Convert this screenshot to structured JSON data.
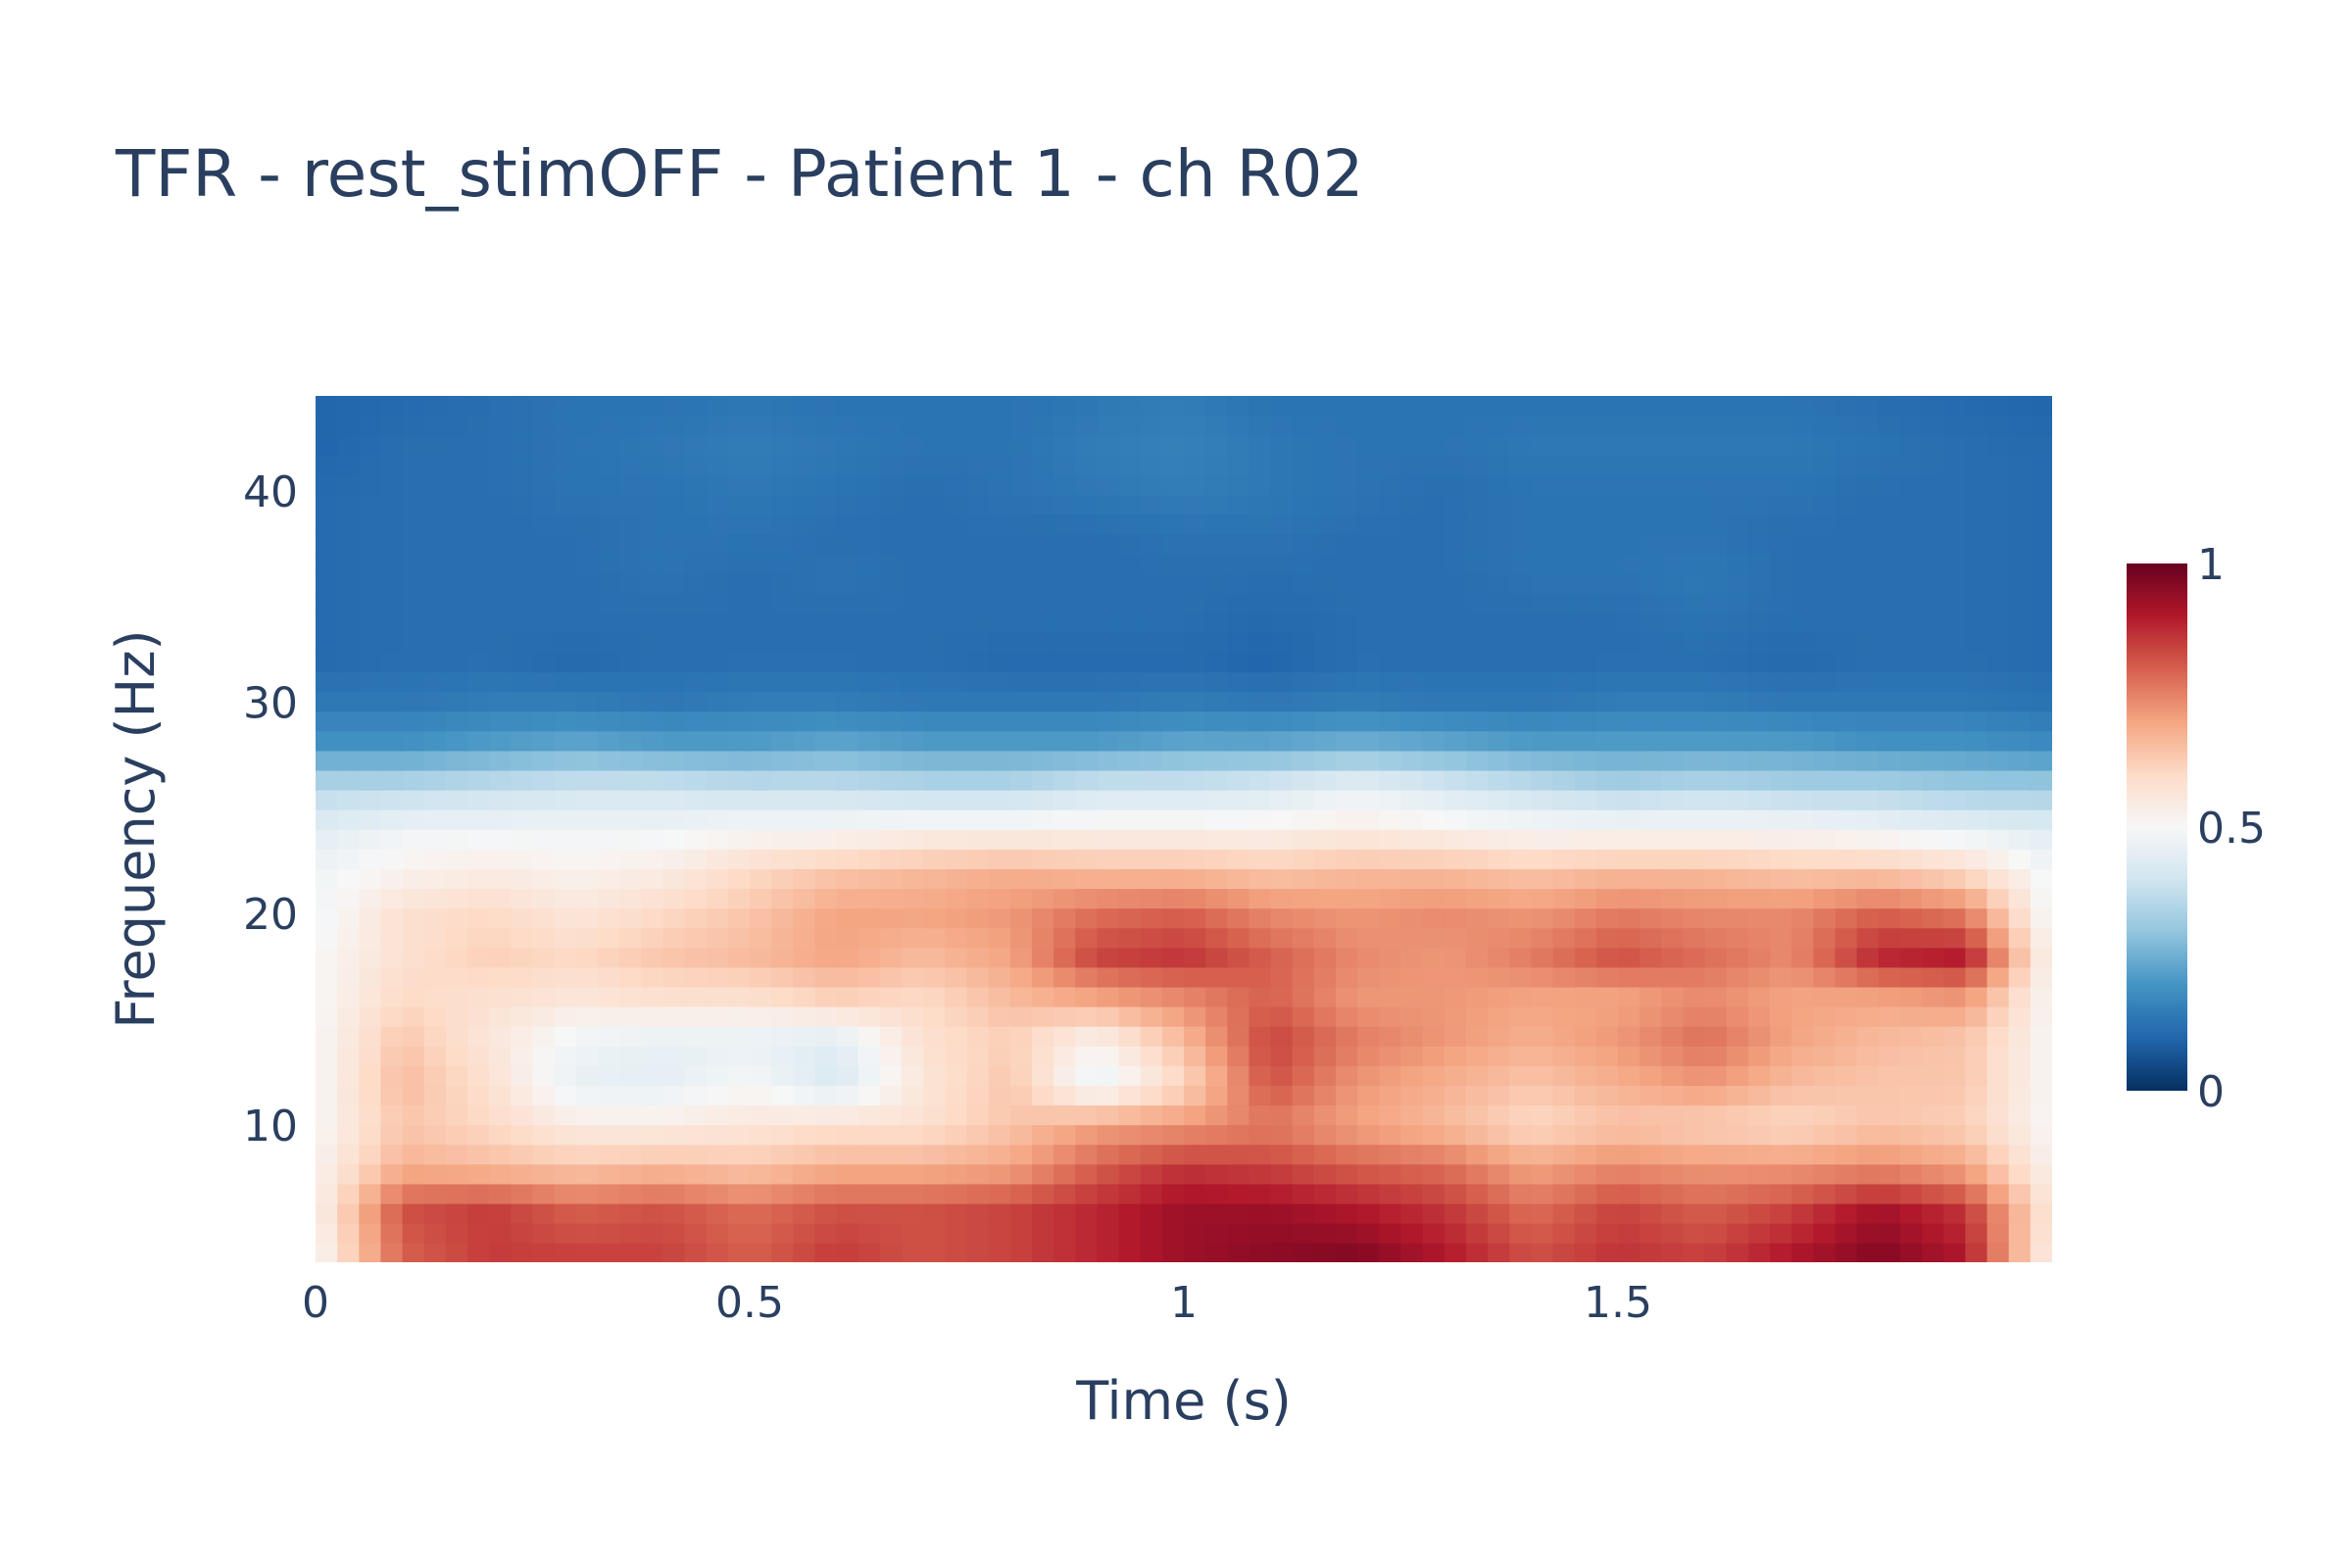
{
  "chart_data": {
    "type": "heatmap",
    "title": "TFR - rest_stimOFF - Patient 1 - ch R02",
    "xlabel": "Time (s)",
    "ylabel": "Frequency (Hz)",
    "xlim": [
      0,
      2
    ],
    "ylim": [
      3.5,
      44.5
    ],
    "x_ticks": [
      0,
      0.5,
      1,
      1.5
    ],
    "x_tick_labels": [
      "0",
      "0.5",
      "1",
      "1.5"
    ],
    "y_ticks": [
      10,
      20,
      30,
      40
    ],
    "y_tick_labels": [
      "10",
      "20",
      "30",
      "40"
    ],
    "colorscale": "RdBu_r",
    "colorscale_stops": [
      "#053061",
      "#2166ac",
      "#4393c3",
      "#92c5de",
      "#d1e5f0",
      "#f7f7f7",
      "#fddbc7",
      "#f4a582",
      "#d6604d",
      "#b2182b",
      "#67001f"
    ],
    "colorbar": {
      "range": [
        0,
        1
      ],
      "ticks": [
        0,
        0.5,
        1
      ],
      "tick_labels": [
        "0",
        "0.5",
        "1"
      ]
    },
    "x": [
      0.0,
      0.1,
      0.2,
      0.3,
      0.4,
      0.5,
      0.6,
      0.7,
      0.8,
      0.9,
      1.0,
      1.1,
      1.2,
      1.3,
      1.4,
      1.5,
      1.6,
      1.7,
      1.8,
      1.9,
      2.0
    ],
    "y": [
      4,
      6,
      8,
      10,
      12,
      14,
      16,
      18,
      20,
      22,
      24,
      26,
      28,
      30,
      32,
      34,
      36,
      38,
      40,
      42,
      44
    ],
    "z": [
      [
        0.5,
        0.8,
        0.85,
        0.84,
        0.84,
        0.8,
        0.85,
        0.82,
        0.84,
        0.88,
        0.93,
        0.95,
        0.96,
        0.9,
        0.82,
        0.86,
        0.84,
        0.9,
        0.96,
        0.9,
        0.52
      ],
      [
        0.52,
        0.82,
        0.85,
        0.8,
        0.82,
        0.78,
        0.82,
        0.82,
        0.84,
        0.88,
        0.93,
        0.93,
        0.9,
        0.86,
        0.78,
        0.84,
        0.8,
        0.84,
        0.92,
        0.86,
        0.55
      ],
      [
        0.52,
        0.68,
        0.66,
        0.64,
        0.66,
        0.64,
        0.68,
        0.68,
        0.7,
        0.8,
        0.86,
        0.84,
        0.8,
        0.78,
        0.7,
        0.74,
        0.72,
        0.72,
        0.74,
        0.7,
        0.52
      ],
      [
        0.5,
        0.64,
        0.6,
        0.54,
        0.54,
        0.56,
        0.58,
        0.58,
        0.64,
        0.7,
        0.72,
        0.76,
        0.7,
        0.66,
        0.6,
        0.64,
        0.62,
        0.6,
        0.64,
        0.62,
        0.5
      ],
      [
        0.5,
        0.66,
        0.58,
        0.46,
        0.45,
        0.5,
        0.42,
        0.56,
        0.64,
        0.46,
        0.6,
        0.82,
        0.72,
        0.68,
        0.64,
        0.68,
        0.72,
        0.66,
        0.64,
        0.64,
        0.5
      ],
      [
        0.5,
        0.64,
        0.56,
        0.48,
        0.46,
        0.46,
        0.44,
        0.58,
        0.62,
        0.52,
        0.66,
        0.84,
        0.76,
        0.72,
        0.68,
        0.72,
        0.78,
        0.7,
        0.66,
        0.64,
        0.5
      ],
      [
        0.5,
        0.6,
        0.58,
        0.56,
        0.58,
        0.58,
        0.62,
        0.6,
        0.66,
        0.7,
        0.74,
        0.8,
        0.72,
        0.72,
        0.7,
        0.7,
        0.74,
        0.7,
        0.7,
        0.72,
        0.5
      ],
      [
        0.5,
        0.58,
        0.62,
        0.6,
        0.64,
        0.66,
        0.7,
        0.66,
        0.7,
        0.84,
        0.86,
        0.8,
        0.74,
        0.72,
        0.76,
        0.82,
        0.78,
        0.74,
        0.88,
        0.9,
        0.5
      ],
      [
        0.48,
        0.58,
        0.6,
        0.56,
        0.6,
        0.64,
        0.7,
        0.7,
        0.72,
        0.78,
        0.8,
        0.74,
        0.72,
        0.74,
        0.72,
        0.76,
        0.74,
        0.74,
        0.8,
        0.76,
        0.48
      ],
      [
        0.48,
        0.52,
        0.54,
        0.52,
        0.54,
        0.6,
        0.64,
        0.66,
        0.68,
        0.66,
        0.66,
        0.64,
        0.66,
        0.66,
        0.64,
        0.66,
        0.66,
        0.64,
        0.64,
        0.6,
        0.48
      ],
      [
        0.44,
        0.48,
        0.48,
        0.48,
        0.48,
        0.5,
        0.5,
        0.52,
        0.52,
        0.52,
        0.52,
        0.52,
        0.54,
        0.52,
        0.5,
        0.5,
        0.5,
        0.5,
        0.48,
        0.46,
        0.44
      ],
      [
        0.36,
        0.36,
        0.38,
        0.4,
        0.4,
        0.38,
        0.38,
        0.36,
        0.36,
        0.4,
        0.4,
        0.42,
        0.46,
        0.42,
        0.38,
        0.34,
        0.36,
        0.34,
        0.34,
        0.32,
        0.32
      ],
      [
        0.2,
        0.2,
        0.22,
        0.24,
        0.22,
        0.22,
        0.24,
        0.22,
        0.22,
        0.22,
        0.24,
        0.24,
        0.26,
        0.24,
        0.22,
        0.22,
        0.22,
        0.22,
        0.2,
        0.2,
        0.18
      ],
      [
        0.14,
        0.14,
        0.15,
        0.15,
        0.14,
        0.15,
        0.15,
        0.14,
        0.14,
        0.14,
        0.15,
        0.14,
        0.15,
        0.14,
        0.14,
        0.15,
        0.15,
        0.14,
        0.14,
        0.14,
        0.13
      ],
      [
        0.11,
        0.12,
        0.12,
        0.11,
        0.12,
        0.12,
        0.12,
        0.12,
        0.11,
        0.11,
        0.11,
        0.1,
        0.12,
        0.12,
        0.12,
        0.12,
        0.12,
        0.11,
        0.12,
        0.12,
        0.11
      ],
      [
        0.11,
        0.12,
        0.12,
        0.12,
        0.12,
        0.12,
        0.12,
        0.12,
        0.12,
        0.12,
        0.12,
        0.11,
        0.12,
        0.12,
        0.12,
        0.12,
        0.13,
        0.12,
        0.12,
        0.12,
        0.11
      ],
      [
        0.11,
        0.12,
        0.12,
        0.12,
        0.13,
        0.12,
        0.13,
        0.12,
        0.12,
        0.12,
        0.12,
        0.12,
        0.12,
        0.12,
        0.13,
        0.13,
        0.14,
        0.12,
        0.12,
        0.12,
        0.11
      ],
      [
        0.11,
        0.12,
        0.12,
        0.12,
        0.13,
        0.13,
        0.12,
        0.12,
        0.12,
        0.12,
        0.13,
        0.13,
        0.12,
        0.12,
        0.13,
        0.13,
        0.13,
        0.12,
        0.12,
        0.12,
        0.11
      ],
      [
        0.11,
        0.12,
        0.12,
        0.13,
        0.13,
        0.14,
        0.13,
        0.12,
        0.13,
        0.14,
        0.15,
        0.14,
        0.13,
        0.12,
        0.13,
        0.13,
        0.13,
        0.13,
        0.12,
        0.12,
        0.11
      ],
      [
        0.1,
        0.12,
        0.12,
        0.13,
        0.14,
        0.15,
        0.14,
        0.13,
        0.13,
        0.15,
        0.16,
        0.14,
        0.13,
        0.13,
        0.14,
        0.14,
        0.14,
        0.14,
        0.13,
        0.12,
        0.11
      ],
      [
        0.1,
        0.11,
        0.12,
        0.13,
        0.13,
        0.14,
        0.13,
        0.13,
        0.13,
        0.14,
        0.15,
        0.13,
        0.13,
        0.13,
        0.13,
        0.13,
        0.13,
        0.13,
        0.12,
        0.11,
        0.1
      ]
    ]
  }
}
